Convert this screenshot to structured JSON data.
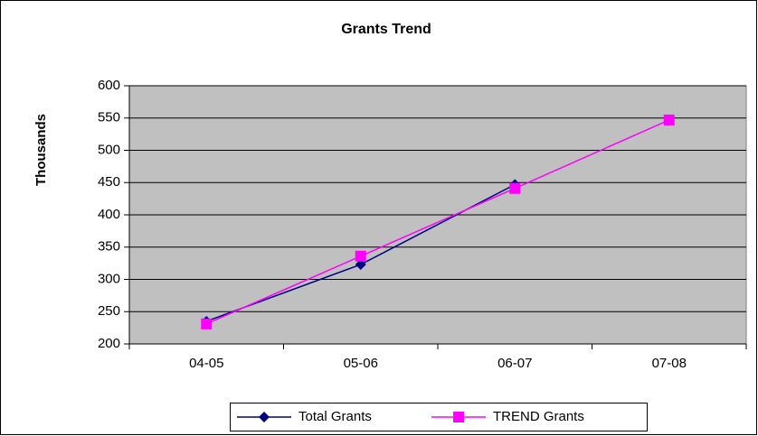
{
  "chart_data": {
    "type": "line",
    "title": "Grants Trend",
    "y_label": "Thousands",
    "categories": [
      "04-05",
      "05-06",
      "06-07",
      "07-08"
    ],
    "series": [
      {
        "name": "Total Grants",
        "color": "#000080",
        "marker": "diamond",
        "values": [
          235,
          323,
          447,
          null
        ]
      },
      {
        "name": "TREND Grants",
        "color": "#ff00ff",
        "marker": "square",
        "values": [
          231,
          336,
          441,
          547
        ]
      }
    ],
    "ylim": [
      200,
      600
    ],
    "yticks": [
      200,
      250,
      300,
      350,
      400,
      450,
      500,
      550,
      600
    ],
    "grid": true,
    "legend": "bottom"
  }
}
